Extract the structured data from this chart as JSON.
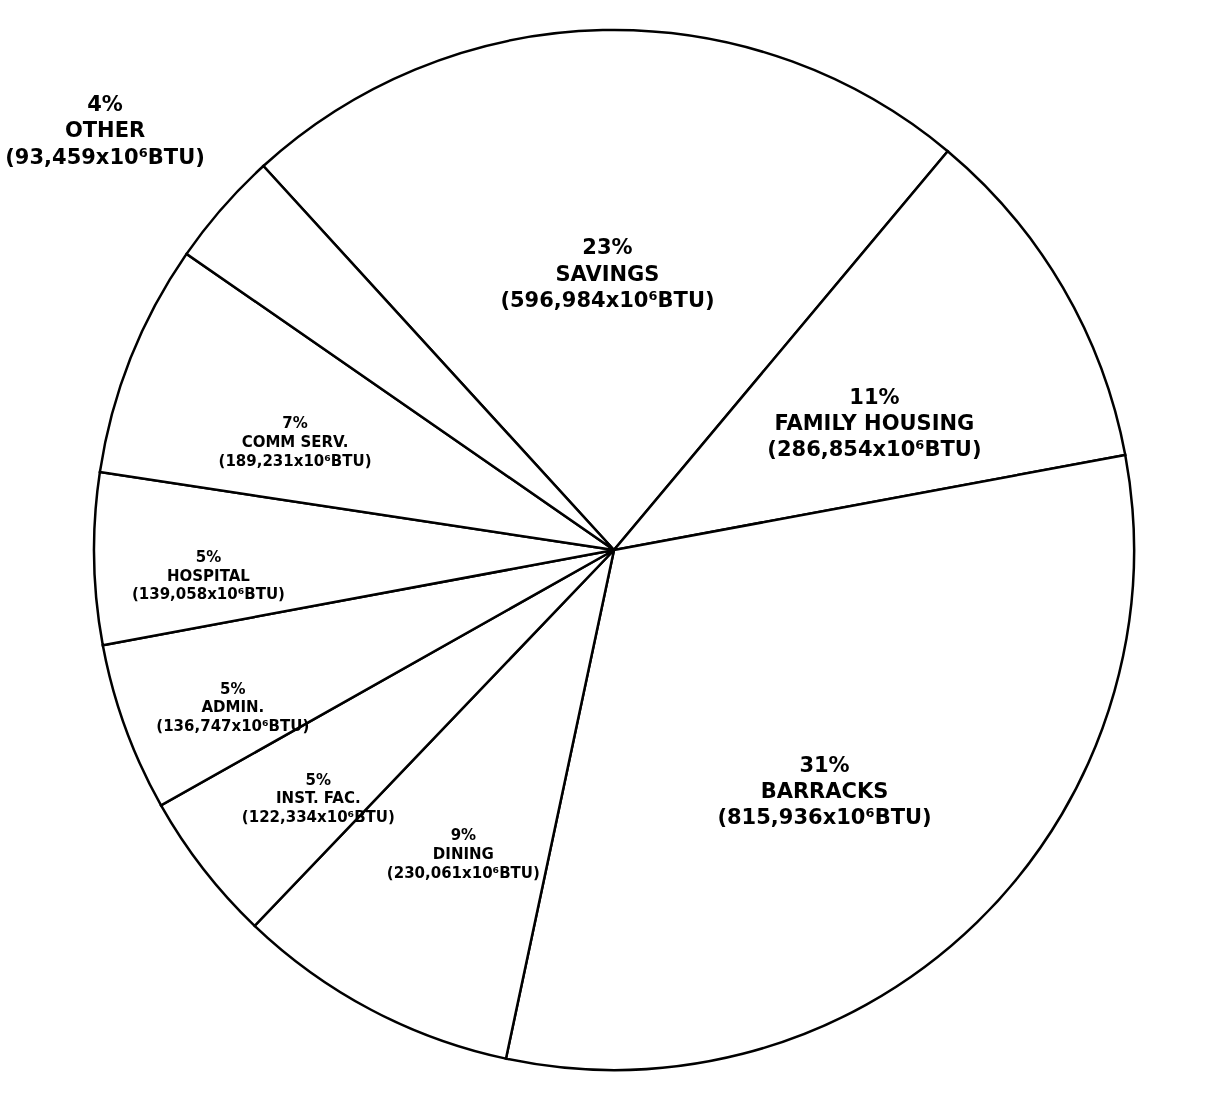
{
  "chart_data": {
    "type": "pie",
    "categories": [
      "SAVINGS",
      "FAMILY HOUSING",
      "BARRACKS",
      "DINING",
      "INST. FAC.",
      "ADMIN.",
      "HOSPITAL",
      "COMM SERV.",
      "OTHER"
    ],
    "values": [
      596984,
      286854,
      815936,
      230061,
      122334,
      136747,
      139058,
      189231,
      93459
    ],
    "colors": [
      "#ffffff",
      "#ffffff",
      "#ffffff",
      "#ffffff",
      "#ffffff",
      "#ffffff",
      "#ffffff",
      "#ffffff",
      "#ffffff"
    ],
    "value_labels": [
      "(596,984x10⁶BTU)",
      "(286,854x10⁶BTU)",
      "(815,936x10⁶BTU)",
      "(230,061x10⁶BTU)",
      "(122,334x10⁶BTU)",
      "(136,747x10⁶BTU)",
      "(139,058x10⁶BTU)",
      "(189,231x10⁶BTU)",
      "(93,459x10⁶BTU)"
    ],
    "annotations": [
      {
        "text": "23%",
        "x": "SAVINGS"
      },
      {
        "text": "11%",
        "x": "FAMILY HOUSING"
      },
      {
        "text": "31%",
        "x": "BARRACKS"
      },
      {
        "text": "9%",
        "x": "DINING"
      },
      {
        "text": "5%",
        "x": "INST. FAC."
      },
      {
        "text": "5%",
        "x": "ADMIN."
      },
      {
        "text": "5%",
        "x": "HOSPITAL"
      },
      {
        "text": "7%",
        "x": "COMM SERV."
      },
      {
        "text": "4%",
        "x": "OTHER"
      }
    ]
  }
}
